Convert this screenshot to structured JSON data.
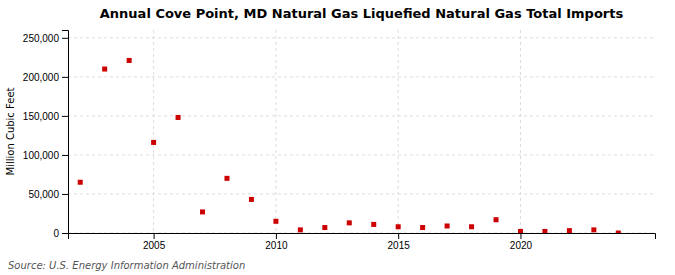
{
  "chart_data": {
    "type": "scatter",
    "title": "Annual Cove Point, MD Natural Gas Liquefied Natural Gas Total Imports",
    "ylabel": "Million Cubic Feet",
    "annotations": [
      "Source: U.S. Energy Information Administration"
    ],
    "x": [
      2002,
      2003,
      2004,
      2005,
      2006,
      2007,
      2008,
      2009,
      2010,
      2011,
      2012,
      2013,
      2014,
      2015,
      2016,
      2017,
      2018,
      2019,
      2020,
      2021,
      2022,
      2023,
      2024
    ],
    "values": [
      65000,
      210000,
      221000,
      116000,
      148000,
      27000,
      70000,
      43000,
      15000,
      4000,
      7000,
      13000,
      11000,
      8000,
      7000,
      9000,
      8000,
      17000,
      2000,
      2000,
      3000,
      4000,
      0
    ],
    "color": "#cc0000",
    "marker": "square",
    "xlim": [
      2001.5,
      2025.5
    ],
    "xticks": [
      2005,
      2010,
      2015,
      2020
    ],
    "ylim": [
      0,
      260000
    ],
    "yticks": [
      0,
      {
        "value": 50000,
        "label": "50,000"
      },
      {
        "value": 100000,
        "label": "100,000"
      },
      {
        "value": 150000,
        "label": "150,000"
      },
      {
        "value": 200000,
        "label": "200,000"
      },
      {
        "value": 250000,
        "label": "250,000"
      }
    ],
    "grid": true
  }
}
